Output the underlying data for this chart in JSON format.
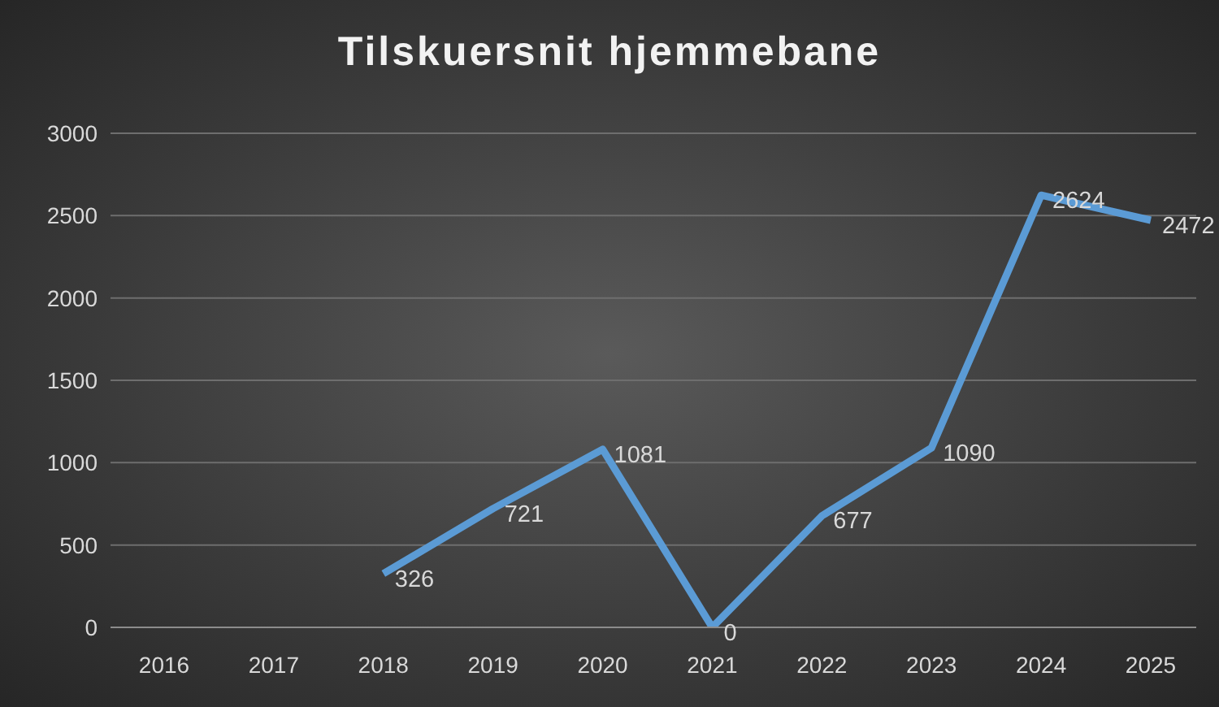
{
  "chart_data": {
    "type": "line",
    "title": "Tilskuersnit hjemmebane",
    "categories": [
      "2016",
      "2017",
      "2018",
      "2019",
      "2020",
      "2021",
      "2022",
      "2023",
      "2024",
      "2025"
    ],
    "series": [
      {
        "color": "#5b9bd5",
        "values": [
          null,
          null,
          326,
          721,
          1081,
          0,
          677,
          1090,
          2624,
          2472
        ]
      }
    ],
    "ylim": [
      0,
      3000
    ],
    "yticks": [
      0,
      500,
      1000,
      1500,
      2000,
      2500,
      3000
    ],
    "grid": "y",
    "data_labels": true
  }
}
